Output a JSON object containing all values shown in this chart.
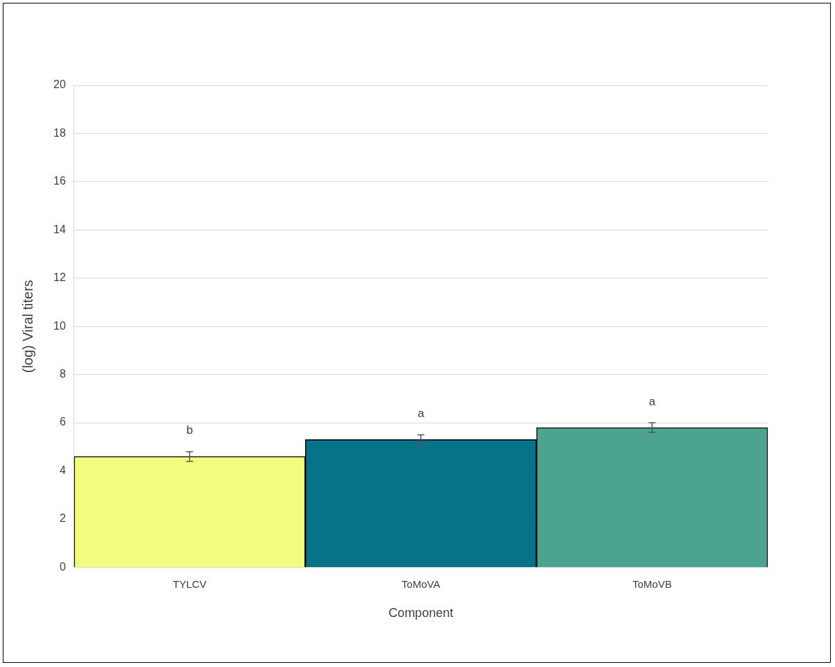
{
  "chart_data": {
    "type": "bar",
    "xlabel": "Component",
    "ylabel": "(log) Viral titers",
    "categories": [
      "TYLCV",
      "ToMoVA",
      "ToMoVB"
    ],
    "values": [
      4.6,
      5.3,
      5.8
    ],
    "colors": [
      "#f1fe80",
      "#077389",
      "#4ca48f"
    ],
    "errors": [
      0.2,
      0.2,
      0.2
    ],
    "ylim": [
      0,
      20
    ],
    "yticks": [
      0,
      2,
      4,
      6,
      8,
      10,
      12,
      14,
      16,
      18,
      20
    ],
    "grid": "y",
    "annotations": [
      "b",
      "a",
      "a"
    ]
  }
}
